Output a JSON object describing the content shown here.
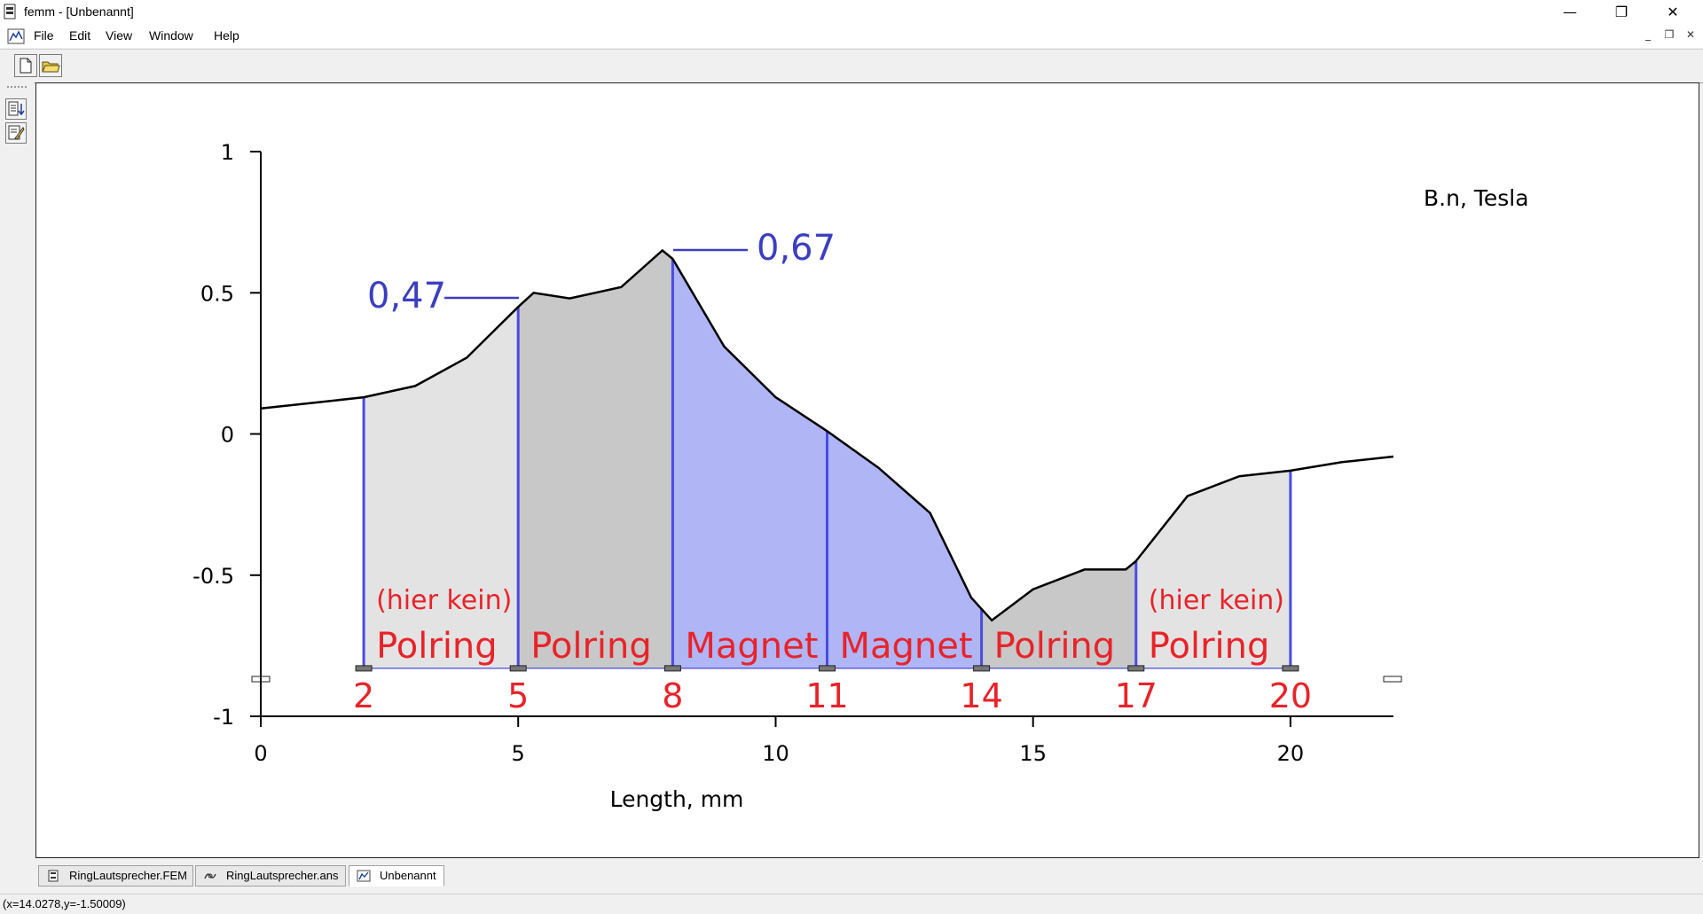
{
  "window": {
    "title": "femm - [Unbenannt]",
    "minimize": "—",
    "maximize": "❐",
    "close": "✕"
  },
  "menu": [
    "File",
    "Edit",
    "View",
    "Window",
    "Help"
  ],
  "mdi_controls": [
    "_",
    "❐",
    "✕"
  ],
  "toolbar": {
    "new": "new-file",
    "open": "open-folder"
  },
  "tabs": [
    "RingLautsprecher.FEM",
    "RingLautsprecher.ans",
    "Unbenannt"
  ],
  "status": "(x=14.0278,y=-1.50009)",
  "chart_data": {
    "type": "area",
    "title": "B.n, Tesla",
    "xlabel": "Length, mm",
    "ylabel": "",
    "xlim": [
      0,
      22
    ],
    "ylim": [
      -1,
      1
    ],
    "xticks": [
      "0",
      "5",
      "10",
      "15",
      "20"
    ],
    "yticks": [
      "1",
      "0.5",
      "0",
      "-0.5",
      "-1"
    ],
    "x": [
      0,
      1,
      2,
      3,
      4,
      5,
      5.3,
      6,
      7,
      7.8,
      8,
      9,
      10,
      11,
      12,
      13,
      13.8,
      14.2,
      15,
      16,
      16.8,
      17,
      18,
      19,
      20,
      21,
      22
    ],
    "y": [
      0.09,
      0.11,
      0.13,
      0.17,
      0.27,
      0.45,
      0.5,
      0.48,
      0.52,
      0.65,
      0.62,
      0.31,
      0.13,
      0.01,
      -0.12,
      -0.28,
      -0.58,
      -0.66,
      -0.55,
      -0.48,
      -0.48,
      -0.45,
      -0.22,
      -0.15,
      -0.13,
      -0.1,
      -0.08
    ],
    "boundaries": [
      "2",
      "5",
      "8",
      "11",
      "14",
      "17",
      "20"
    ],
    "regions": [
      {
        "pre": "(hier kein)",
        "label": "Polring",
        "color": "#e3e3e3"
      },
      {
        "pre": "",
        "label": "Polring",
        "color": "#c8c8c8"
      },
      {
        "pre": "",
        "label": "Magnet",
        "color": "#b0b5f6"
      },
      {
        "pre": "",
        "label": "Magnet",
        "color": "#b0b5f6"
      },
      {
        "pre": "",
        "label": "Polring",
        "color": "#c8c8c8"
      },
      {
        "pre": "(hier kein)",
        "label": "Polring",
        "color": "#e3e3e3"
      }
    ],
    "annotations": [
      "0,47",
      "0,67"
    ],
    "colors": {
      "label": "#e8232a",
      "annotation": "#3b3fbf",
      "boundary": "#4a4ae0"
    }
  }
}
